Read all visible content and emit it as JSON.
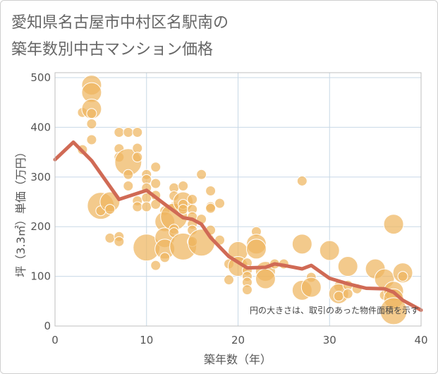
{
  "title_lines": [
    "愛知県名古屋市中村区名駅南の",
    "築年数別中古マンション価格"
  ],
  "chart_data": {
    "type": "scatter",
    "title": "愛知県名古屋市中村区名駅南の築年数別中古マンション価格",
    "xlabel": "築年数（年）",
    "ylabel": "坪（3.3㎡）単価（万円）",
    "xlim": [
      0,
      40
    ],
    "ylim": [
      0,
      510
    ],
    "x_ticks": [
      "0",
      "10",
      "20",
      "30",
      "40"
    ],
    "y_ticks": [
      "0",
      "100",
      "200",
      "300",
      "400",
      "500"
    ],
    "x_tick_values": [
      0,
      10,
      20,
      30,
      40
    ],
    "y_tick_values": [
      0,
      100,
      200,
      300,
      400,
      500
    ],
    "grid": true,
    "annotation": "円の大きさは、取引のあった物件面積を示す",
    "colors": {
      "bubble": "#efb560",
      "line": "#d06a55",
      "grid": "#c8d8e6",
      "axis": "#bfbfbf"
    },
    "bubbles": [
      {
        "x": 3,
        "y": 355,
        "s": 1
      },
      {
        "x": 3,
        "y": 430,
        "s": 1
      },
      {
        "x": 4,
        "y": 485,
        "s": 2
      },
      {
        "x": 4,
        "y": 470,
        "s": 2
      },
      {
        "x": 4,
        "y": 437,
        "s": 2
      },
      {
        "x": 4,
        "y": 428,
        "s": 1
      },
      {
        "x": 4,
        "y": 407,
        "s": 1
      },
      {
        "x": 4,
        "y": 375,
        "s": 1
      },
      {
        "x": 5,
        "y": 242,
        "s": 3
      },
      {
        "x": 5,
        "y": 232,
        "s": 1
      },
      {
        "x": 6,
        "y": 250,
        "s": 2
      },
      {
        "x": 6,
        "y": 235,
        "s": 1
      },
      {
        "x": 6,
        "y": 177,
        "s": 1
      },
      {
        "x": 7,
        "y": 390,
        "s": 1
      },
      {
        "x": 7,
        "y": 357,
        "s": 1
      },
      {
        "x": 7,
        "y": 340,
        "s": 1
      },
      {
        "x": 7,
        "y": 180,
        "s": 1
      },
      {
        "x": 7,
        "y": 170,
        "s": 1
      },
      {
        "x": 8,
        "y": 390,
        "s": 1
      },
      {
        "x": 8,
        "y": 330,
        "s": 3
      },
      {
        "x": 8,
        "y": 305,
        "s": 1
      },
      {
        "x": 8,
        "y": 282,
        "s": 1
      },
      {
        "x": 9,
        "y": 390,
        "s": 1
      },
      {
        "x": 9,
        "y": 358,
        "s": 1
      },
      {
        "x": 9,
        "y": 340,
        "s": 1
      },
      {
        "x": 9,
        "y": 252,
        "s": 1
      },
      {
        "x": 9,
        "y": 240,
        "s": 1
      },
      {
        "x": 10,
        "y": 305,
        "s": 1
      },
      {
        "x": 10,
        "y": 295,
        "s": 1
      },
      {
        "x": 10,
        "y": 278,
        "s": 1
      },
      {
        "x": 10,
        "y": 258,
        "s": 1
      },
      {
        "x": 10,
        "y": 240,
        "s": 1
      },
      {
        "x": 10,
        "y": 158,
        "s": 3
      },
      {
        "x": 11,
        "y": 320,
        "s": 1
      },
      {
        "x": 11,
        "y": 287,
        "s": 1
      },
      {
        "x": 11,
        "y": 263,
        "s": 1
      },
      {
        "x": 11,
        "y": 245,
        "s": 1
      },
      {
        "x": 11,
        "y": 122,
        "s": 1
      },
      {
        "x": 12,
        "y": 232,
        "s": 1
      },
      {
        "x": 12,
        "y": 210,
        "s": 2
      },
      {
        "x": 12,
        "y": 178,
        "s": 2
      },
      {
        "x": 12,
        "y": 155,
        "s": 2
      },
      {
        "x": 12,
        "y": 138,
        "s": 1
      },
      {
        "x": 13,
        "y": 278,
        "s": 1
      },
      {
        "x": 13,
        "y": 262,
        "s": 1
      },
      {
        "x": 13,
        "y": 240,
        "s": 1
      },
      {
        "x": 13,
        "y": 220,
        "s": 3
      },
      {
        "x": 13,
        "y": 195,
        "s": 1
      },
      {
        "x": 13,
        "y": 188,
        "s": 1
      },
      {
        "x": 14,
        "y": 282,
        "s": 1
      },
      {
        "x": 14,
        "y": 250,
        "s": 2
      },
      {
        "x": 14,
        "y": 245,
        "s": 1
      },
      {
        "x": 14,
        "y": 235,
        "s": 1
      },
      {
        "x": 14,
        "y": 160,
        "s": 3
      },
      {
        "x": 15,
        "y": 255,
        "s": 1
      },
      {
        "x": 15,
        "y": 235,
        "s": 1
      },
      {
        "x": 15,
        "y": 220,
        "s": 1
      },
      {
        "x": 15,
        "y": 205,
        "s": 1
      },
      {
        "x": 15,
        "y": 193,
        "s": 1
      },
      {
        "x": 15,
        "y": 170,
        "s": 1
      },
      {
        "x": 16,
        "y": 305,
        "s": 1
      },
      {
        "x": 16,
        "y": 215,
        "s": 1
      },
      {
        "x": 16,
        "y": 168,
        "s": 3
      },
      {
        "x": 17,
        "y": 272,
        "s": 1
      },
      {
        "x": 17,
        "y": 240,
        "s": 1
      },
      {
        "x": 17,
        "y": 237,
        "s": 1
      },
      {
        "x": 17,
        "y": 193,
        "s": 1
      },
      {
        "x": 18,
        "y": 247,
        "s": 1
      },
      {
        "x": 18,
        "y": 173,
        "s": 1
      },
      {
        "x": 19,
        "y": 125,
        "s": 1
      },
      {
        "x": 19,
        "y": 93,
        "s": 1
      },
      {
        "x": 20,
        "y": 150,
        "s": 2
      },
      {
        "x": 20,
        "y": 120,
        "s": 2
      },
      {
        "x": 21,
        "y": 127,
        "s": 1
      },
      {
        "x": 21,
        "y": 112,
        "s": 1
      },
      {
        "x": 21,
        "y": 100,
        "s": 1
      },
      {
        "x": 21,
        "y": 88,
        "s": 1
      },
      {
        "x": 21,
        "y": 73,
        "s": 1
      },
      {
        "x": 22,
        "y": 190,
        "s": 1
      },
      {
        "x": 22,
        "y": 165,
        "s": 2
      },
      {
        "x": 22,
        "y": 155,
        "s": 2
      },
      {
        "x": 23,
        "y": 110,
        "s": 2
      },
      {
        "x": 23,
        "y": 95,
        "s": 2
      },
      {
        "x": 24,
        "y": 125,
        "s": 1
      },
      {
        "x": 25,
        "y": 125,
        "s": 1
      },
      {
        "x": 27,
        "y": 292,
        "s": 1
      },
      {
        "x": 27,
        "y": 165,
        "s": 2
      },
      {
        "x": 27,
        "y": 72,
        "s": 2
      },
      {
        "x": 28,
        "y": 98,
        "s": 1
      },
      {
        "x": 28,
        "y": 78,
        "s": 2
      },
      {
        "x": 30,
        "y": 152,
        "s": 2
      },
      {
        "x": 31,
        "y": 80,
        "s": 1
      },
      {
        "x": 31,
        "y": 65,
        "s": 2
      },
      {
        "x": 31,
        "y": 60,
        "s": 1
      },
      {
        "x": 32,
        "y": 120,
        "s": 2
      },
      {
        "x": 32,
        "y": 82,
        "s": 1
      },
      {
        "x": 32,
        "y": 65,
        "s": 1
      },
      {
        "x": 33,
        "y": 75,
        "s": 1
      },
      {
        "x": 35,
        "y": 115,
        "s": 2
      },
      {
        "x": 36,
        "y": 95,
        "s": 2
      },
      {
        "x": 36,
        "y": 62,
        "s": 1
      },
      {
        "x": 37,
        "y": 205,
        "s": 2
      },
      {
        "x": 37,
        "y": 70,
        "s": 2
      },
      {
        "x": 37,
        "y": 55,
        "s": 2
      },
      {
        "x": 37,
        "y": 30,
        "s": 3
      },
      {
        "x": 38,
        "y": 107,
        "s": 2
      },
      {
        "x": 38,
        "y": 100,
        "s": 1
      }
    ],
    "trend": {
      "x": [
        0,
        2,
        4,
        7,
        10,
        12,
        14,
        15,
        16,
        17,
        19,
        21,
        23,
        24,
        25,
        27,
        28,
        30,
        32,
        34,
        36,
        37,
        38,
        40
      ],
      "y": [
        335,
        370,
        333,
        255,
        273,
        245,
        218,
        215,
        205,
        178,
        140,
        117,
        118,
        125,
        122,
        115,
        122,
        96,
        85,
        76,
        75,
        68,
        52,
        32
      ]
    }
  }
}
